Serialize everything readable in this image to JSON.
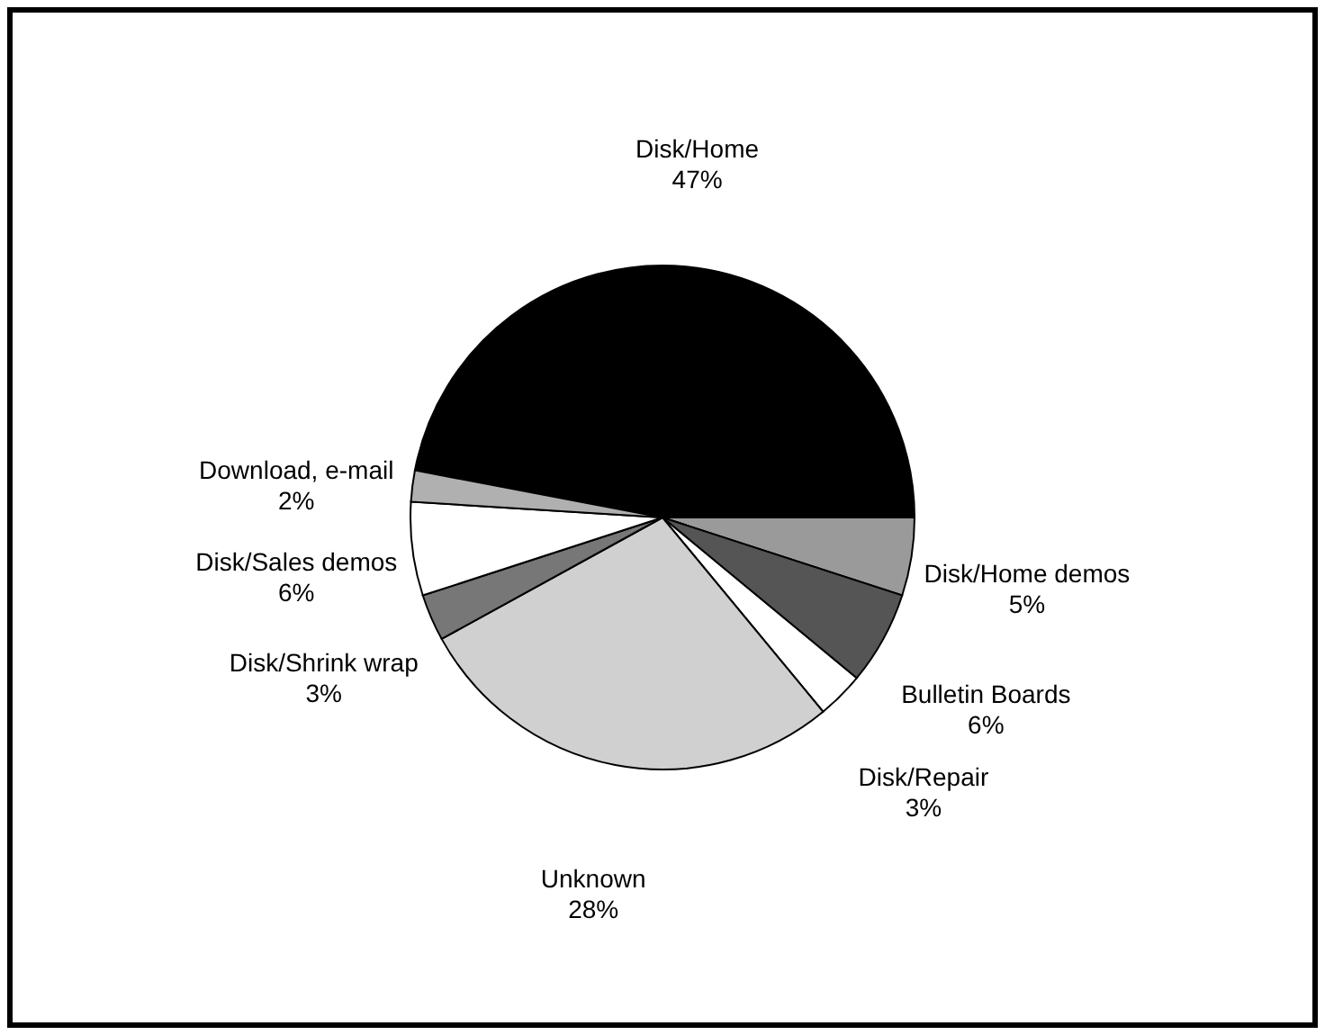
{
  "chart_data": {
    "type": "pie",
    "categories": [
      "Disk/Home",
      "Disk/Home demos",
      "Bulletin Boards",
      "Disk/Repair",
      "Unknown",
      "Disk/Shrink wrap",
      "Disk/Sales demos",
      "Download, e-mail"
    ],
    "values": [
      47,
      5,
      6,
      3,
      28,
      3,
      6,
      2
    ],
    "colors": [
      "#000000",
      "#9a9a9a",
      "#555555",
      "#ffffff",
      "#d0d0d0",
      "#777777",
      "#ffffff",
      "#b0b0b0"
    ],
    "value_labels": [
      "47%",
      "5%",
      "6%",
      "3%",
      "28%",
      "3%",
      "6%",
      "2%"
    ]
  }
}
